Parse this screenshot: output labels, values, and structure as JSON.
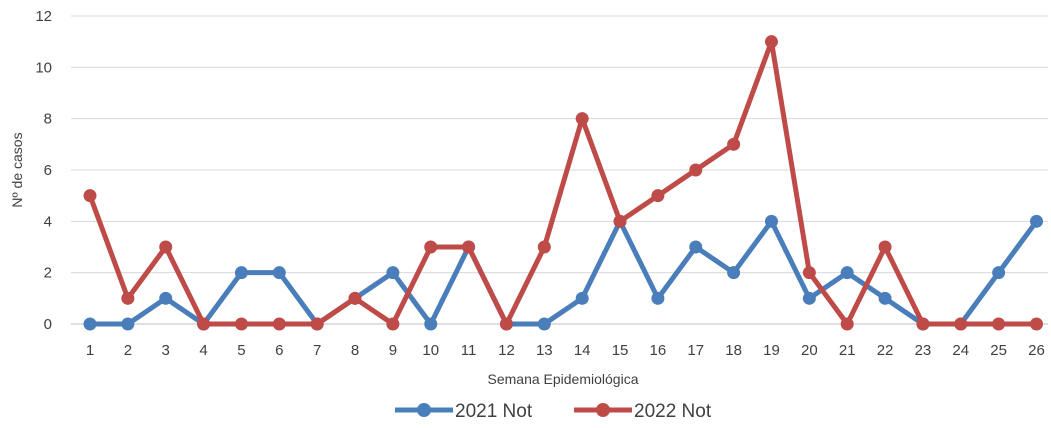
{
  "chart_data": {
    "type": "line",
    "title": "",
    "xlabel": "Semana Epidemiológica",
    "ylabel": "Nº de casos",
    "ylim": [
      0,
      12
    ],
    "yticks": [
      0,
      2,
      4,
      6,
      8,
      10,
      12
    ],
    "grid": "horizontal",
    "legend": "bottom",
    "categories": [
      "1",
      "2",
      "3",
      "4",
      "5",
      "6",
      "7",
      "8",
      "9",
      "10",
      "11",
      "12",
      "13",
      "14",
      "15",
      "16",
      "17",
      "18",
      "19",
      "20",
      "21",
      "22",
      "23",
      "24",
      "25",
      "26"
    ],
    "series": [
      {
        "name": "2021 Not",
        "color": "#4a7ebb",
        "values": [
          0,
          0,
          1,
          0,
          2,
          2,
          0,
          1,
          2,
          0,
          3,
          0,
          0,
          1,
          4,
          1,
          3,
          2,
          4,
          1,
          2,
          1,
          0,
          0,
          2,
          4
        ]
      },
      {
        "name": "2022 Not",
        "color": "#be4b48",
        "values": [
          5,
          1,
          3,
          0,
          0,
          0,
          0,
          1,
          0,
          3,
          3,
          0,
          3,
          8,
          4,
          5,
          6,
          7,
          11,
          2,
          0,
          3,
          0,
          0,
          0,
          0
        ]
      }
    ]
  }
}
